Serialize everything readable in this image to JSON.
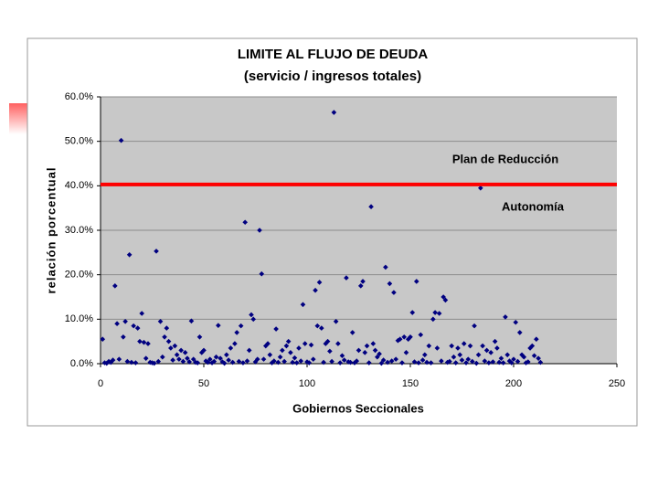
{
  "chart_data": {
    "type": "scatter",
    "title": "LIMITE AL FLUJO DE DEUDA",
    "subtitle": "(servicio / ingresos totales)",
    "x_label": "Gobiernos Seccionales",
    "y_label": "relación porcentual",
    "color": "#000080",
    "grid": true,
    "xlim": [
      0,
      250
    ],
    "xticks": [
      0,
      50,
      100,
      150,
      200,
      250
    ],
    "ylim": [
      0,
      60
    ],
    "yticks": [
      {
        "value": 0,
        "label": "0.0%"
      },
      {
        "value": 10,
        "label": "10.0%"
      },
      {
        "value": 20,
        "label": "20.0%"
      },
      {
        "value": 30,
        "label": "30.0%"
      },
      {
        "value": 40,
        "label": "40.0%"
      },
      {
        "value": 50,
        "label": "50.0%"
      },
      {
        "value": 60,
        "label": "60.0%"
      }
    ],
    "reference_line": {
      "value": 40.3,
      "color": "#ff0000"
    },
    "annotations": [
      "Plan de Reducción",
      "Autonomía"
    ],
    "x": [
      1,
      2,
      3,
      4,
      5,
      6,
      7,
      8,
      9,
      10,
      11,
      12,
      13,
      14,
      15,
      16,
      17,
      18,
      19,
      20,
      21,
      22,
      23,
      24,
      25,
      26,
      27,
      28,
      29,
      30,
      31,
      32,
      33,
      34,
      35,
      36,
      37,
      38,
      39,
      40,
      41,
      42,
      43,
      44,
      45,
      46,
      47,
      48,
      49,
      50,
      51,
      52,
      53,
      54,
      55,
      56,
      57,
      58,
      59,
      60,
      61,
      62,
      63,
      64,
      65,
      66,
      67,
      68,
      69,
      70,
      71,
      72,
      73,
      74,
      75,
      76,
      77,
      78,
      79,
      80,
      81,
      82,
      83,
      84,
      85,
      86,
      87,
      88,
      89,
      90,
      91,
      92,
      93,
      94,
      95,
      96,
      97,
      98,
      99,
      100,
      101,
      102,
      103,
      104,
      105,
      106,
      107,
      108,
      109,
      110,
      111,
      112,
      113,
      114,
      115,
      116,
      117,
      118,
      119,
      120,
      121,
      122,
      123,
      124,
      125,
      126,
      127,
      128,
      129,
      130,
      131,
      132,
      133,
      134,
      135,
      136,
      137,
      138,
      139,
      140,
      141,
      142,
      143,
      144,
      145,
      146,
      147,
      148,
      149,
      150,
      151,
      152,
      153,
      154,
      155,
      156,
      157,
      158,
      159,
      160,
      161,
      162,
      163,
      164,
      165,
      166,
      167,
      168,
      169,
      170,
      171,
      172,
      173,
      174,
      175,
      176,
      177,
      178,
      179,
      180,
      181,
      182,
      183,
      184,
      185,
      186,
      187,
      188,
      189,
      190,
      191,
      192,
      193,
      194,
      195,
      196,
      197,
      198,
      199,
      200,
      201,
      202,
      203,
      204,
      205,
      206,
      207,
      208,
      209,
      210,
      211,
      212,
      213
    ],
    "values": [
      5.5,
      0.2,
      0.1,
      0.5,
      0.3,
      0.8,
      17.5,
      9,
      1,
      50.2,
      6,
      9.5,
      0.5,
      24.5,
      0.3,
      8.5,
      0.2,
      8,
      5,
      11.3,
      4.8,
      1.2,
      4.5,
      0.3,
      0.2,
      0.1,
      25.3,
      0.5,
      9.5,
      1.5,
      6,
      8,
      5,
      3.5,
      0.8,
      4,
      2,
      1,
      3,
      0.5,
      2.5,
      1.2,
      0.4,
      9.6,
      1,
      0.3,
      0.2,
      6,
      2.5,
      3,
      0.6,
      0.3,
      1,
      0.2,
      0.5,
      1.5,
      8.6,
      1.2,
      0.4,
      0.1,
      2,
      0.8,
      3.5,
      0.3,
      4.5,
      7,
      0.5,
      8.5,
      0.2,
      31.8,
      0.6,
      3,
      11,
      10,
      0.4,
      1,
      30,
      20.2,
      1,
      4,
      4.5,
      2,
      0.2,
      0.6,
      7.8,
      0.3,
      1.5,
      3,
      0.5,
      4,
      5,
      2.5,
      0.3,
      1.3,
      0.2,
      3.5,
      0.6,
      13.3,
      4.5,
      0.4,
      0.2,
      4.2,
      1,
      16.5,
      8.5,
      18.3,
      8,
      0.3,
      4.5,
      5,
      2.8,
      0.5,
      56.5,
      9.5,
      4.5,
      0.2,
      1.8,
      0.8,
      19.3,
      0.4,
      0.3,
      7,
      0.2,
      0.6,
      3,
      17.5,
      18.5,
      2.5,
      4,
      0.2,
      35.3,
      4.5,
      3,
      1.5,
      2.2,
      0.1,
      0.8,
      21.7,
      0.3,
      18,
      0.6,
      16,
      1,
      5.2,
      5.5,
      0.2,
      6,
      2.5,
      5.5,
      6,
      11.5,
      0.4,
      18.5,
      0.2,
      6.5,
      0.8,
      2,
      0.3,
      4,
      0.2,
      10,
      11.5,
      3.5,
      11.3,
      0.6,
      15,
      14.3,
      0.3,
      0.5,
      4,
      1.5,
      0.2,
      3.5,
      2,
      0.8,
      4.5,
      0.2,
      1,
      4,
      0.5,
      8.5,
      0.1,
      2,
      39.5,
      4,
      0.6,
      3,
      0.2,
      2.5,
      0.4,
      5,
      3.5,
      0.3,
      1.2,
      0.2,
      10.5,
      2,
      0.6,
      0.2,
      1,
      9.3,
      0.5,
      7,
      2,
      1.5,
      0.2,
      0.4,
      3.5,
      4,
      1.8,
      5.5,
      1.2,
      0.3
    ]
  }
}
